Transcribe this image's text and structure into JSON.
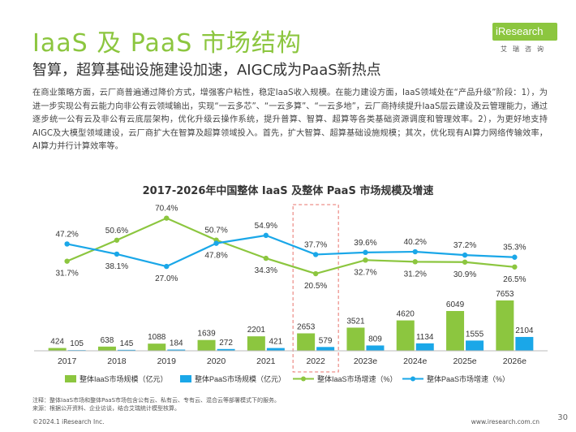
{
  "header": {
    "title": "IaaS 及 PaaS 市场结构",
    "subtitle": "智算，超算基础设施建设加速，AIGC成为PaaS新热点"
  },
  "logo": {
    "text": "iResearch",
    "sub": "艾瑞咨询"
  },
  "paragraph": "在商业策略方面，云厂商普遍通过降价方式，增强客户粘性，稳定IaaS收入规模。在能力建设方面，IaaS领域处在“产品升级”阶段：1），为进一步实现公有云能力向非公有云领域输出，实现“一云多芯”、“一云多算”、“一云多地”，云厂商持续提升IaaS层云建设及云管理能力，通过逐步统一公有云及非公有云底层架构，优化升级云操作系统，提升普算、智算、超算等各类基础资源调度和管理效率。2），为更好地支持AIGC及大模型领域建设，云厂商扩大在智算及超算领域投入。首先，扩大智算、超算基础设施规模；其次，优化现有AI算力网络传输效率，AI算力并行计算效率等。",
  "chart_data": {
    "type": "bar",
    "title": "2017-2026年中国整体 IaaS 及整体 PaaS 市场规模及增速",
    "categories": [
      "2017",
      "2018",
      "2019",
      "2020",
      "2021",
      "2022",
      "2023e",
      "2024e",
      "2025e",
      "2026e"
    ],
    "highlight_category": "2022",
    "series": [
      {
        "name": "整体IaaS市场规模（亿元）",
        "kind": "bar",
        "color": "#8cc63f",
        "values": [
          424,
          638,
          1088,
          1639,
          2201,
          2653,
          3521,
          4620,
          6049,
          7653
        ]
      },
      {
        "name": "整体PaaS市场规模（亿元）",
        "kind": "bar",
        "color": "#1aa7e8",
        "values": [
          105,
          145,
          184,
          272,
          421,
          579,
          809,
          1134,
          1555,
          2104
        ]
      },
      {
        "name": "整体IaaS市场增速（%）",
        "kind": "line",
        "color": "#8cc63f",
        "values": [
          31.7,
          50.6,
          70.4,
          50.7,
          34.3,
          20.5,
          32.7,
          31.2,
          30.9,
          26.5
        ],
        "labels": [
          "31.7%",
          "50.6%",
          "70.4%",
          "50.7%",
          "34.3%",
          "20.5%",
          "32.7%",
          "31.2%",
          "30.9%",
          "26.5%"
        ]
      },
      {
        "name": "整体PaaS市场增速（%）",
        "kind": "line",
        "color": "#1aa7e8",
        "values": [
          47.2,
          38.1,
          27.0,
          47.8,
          54.9,
          37.7,
          39.6,
          40.2,
          37.2,
          35.3
        ],
        "labels": [
          "47.2%",
          "38.1%",
          "27.0%",
          "47.8%",
          "54.9%",
          "37.7%",
          "39.6%",
          "40.2%",
          "37.2%",
          "35.3%"
        ]
      }
    ],
    "legend_position": "bottom",
    "grid": false
  },
  "notes": {
    "line1": "注释：整体IaaS市场和整体PaaS市场包含公有云、私有云、专有云、混合云等部署模式下的服务。",
    "line2": "来源：根据公开资料、企业访谈，结合艾瑞统计模型核算。"
  },
  "footer": {
    "copyright": "©2024.1 iResearch Inc.",
    "website": "www.iresearch.com.cn",
    "page": "30"
  }
}
